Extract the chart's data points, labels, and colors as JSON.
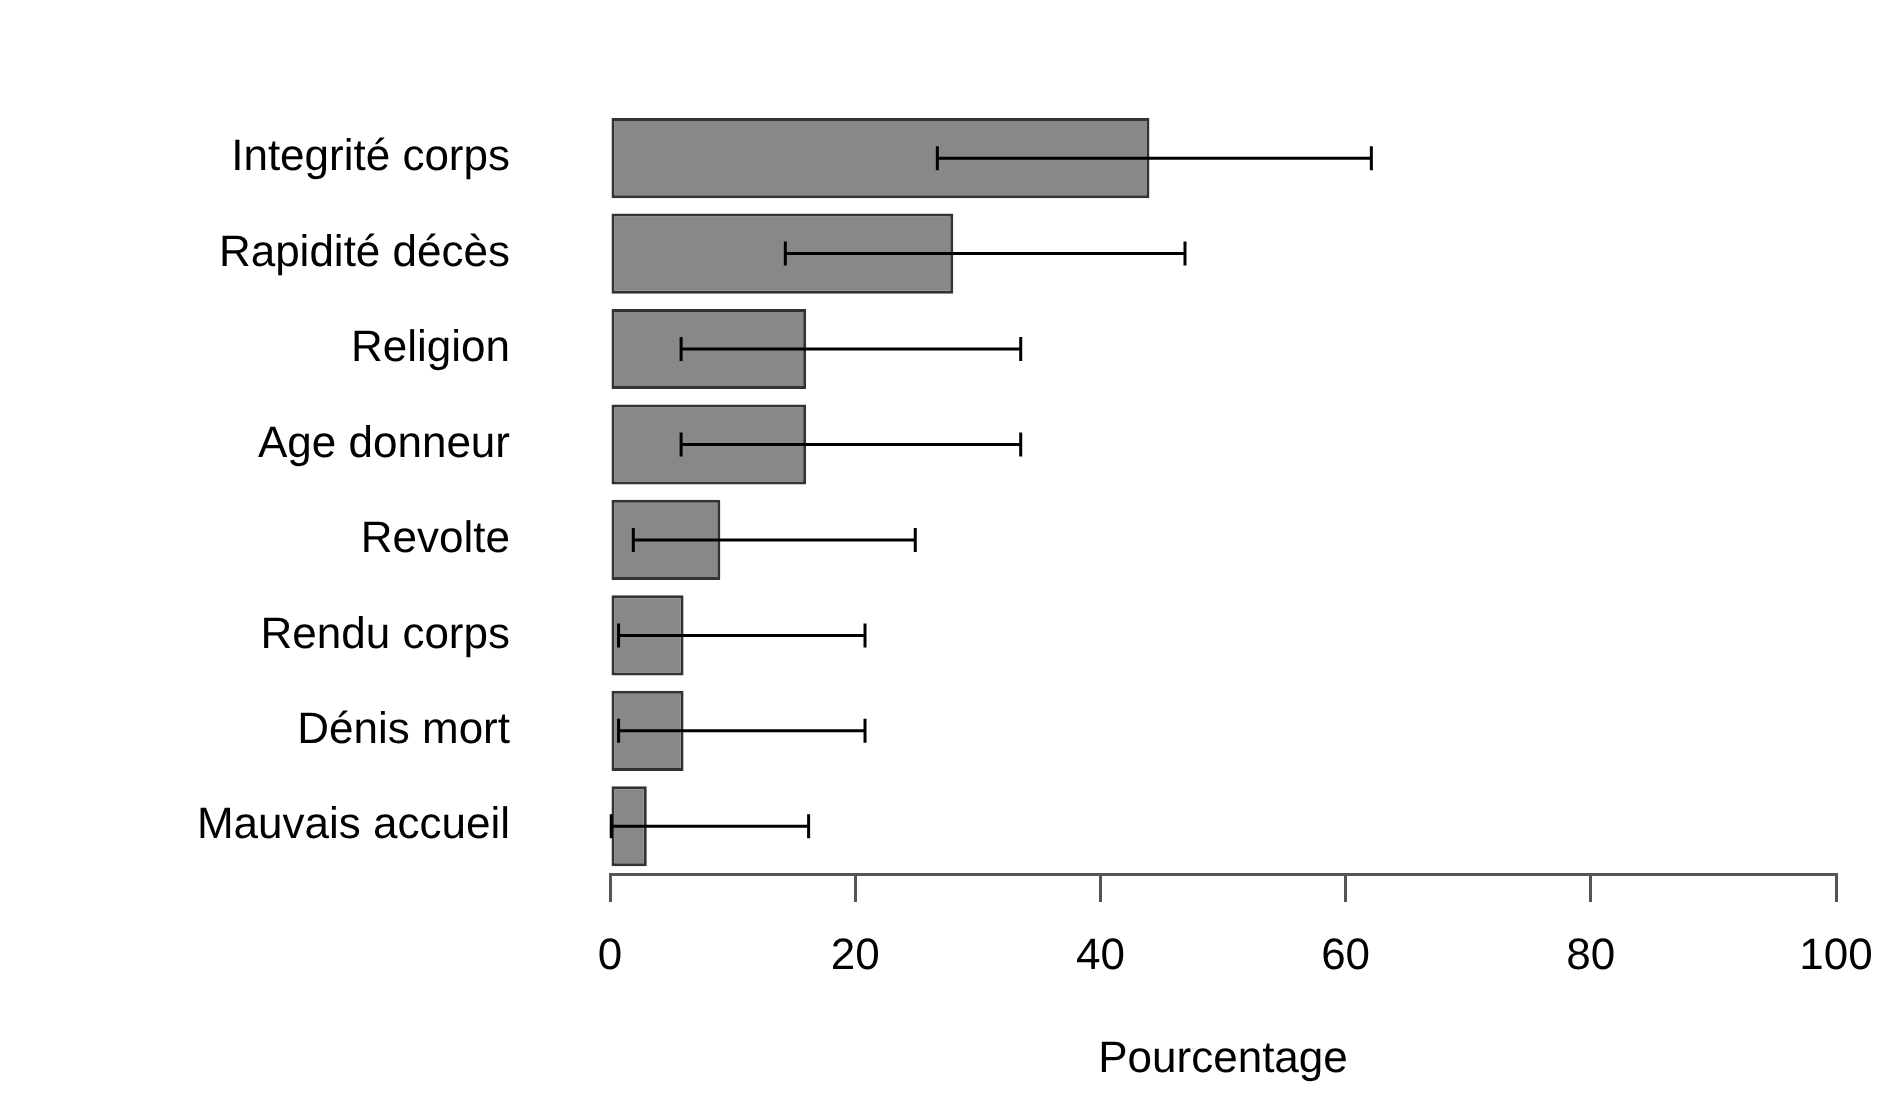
{
  "chart_data": {
    "type": "bar",
    "orientation": "horizontal",
    "xlabel": "Pourcentage",
    "categories": [
      "Integrité corps",
      "Rapidité décès",
      "Religion",
      "Age donneur",
      "Revolte",
      "Rendu corps",
      "Dénis mort",
      "Mauvais accueil"
    ],
    "values": [
      44,
      28,
      16,
      16,
      9,
      6,
      6,
      3
    ],
    "errors": [
      [
        26.7,
        62.1
      ],
      [
        14.3,
        46.9
      ],
      [
        5.8,
        33.5
      ],
      [
        5.8,
        33.5
      ],
      [
        1.9,
        24.9
      ],
      [
        0.7,
        20.8
      ],
      [
        0.7,
        20.8
      ],
      [
        0.1,
        16.2
      ]
    ],
    "color": "#888888",
    "xlim": [
      0,
      100
    ],
    "xticks": [
      0,
      20,
      40,
      60,
      80,
      100
    ],
    "grid": false,
    "legend": false
  }
}
